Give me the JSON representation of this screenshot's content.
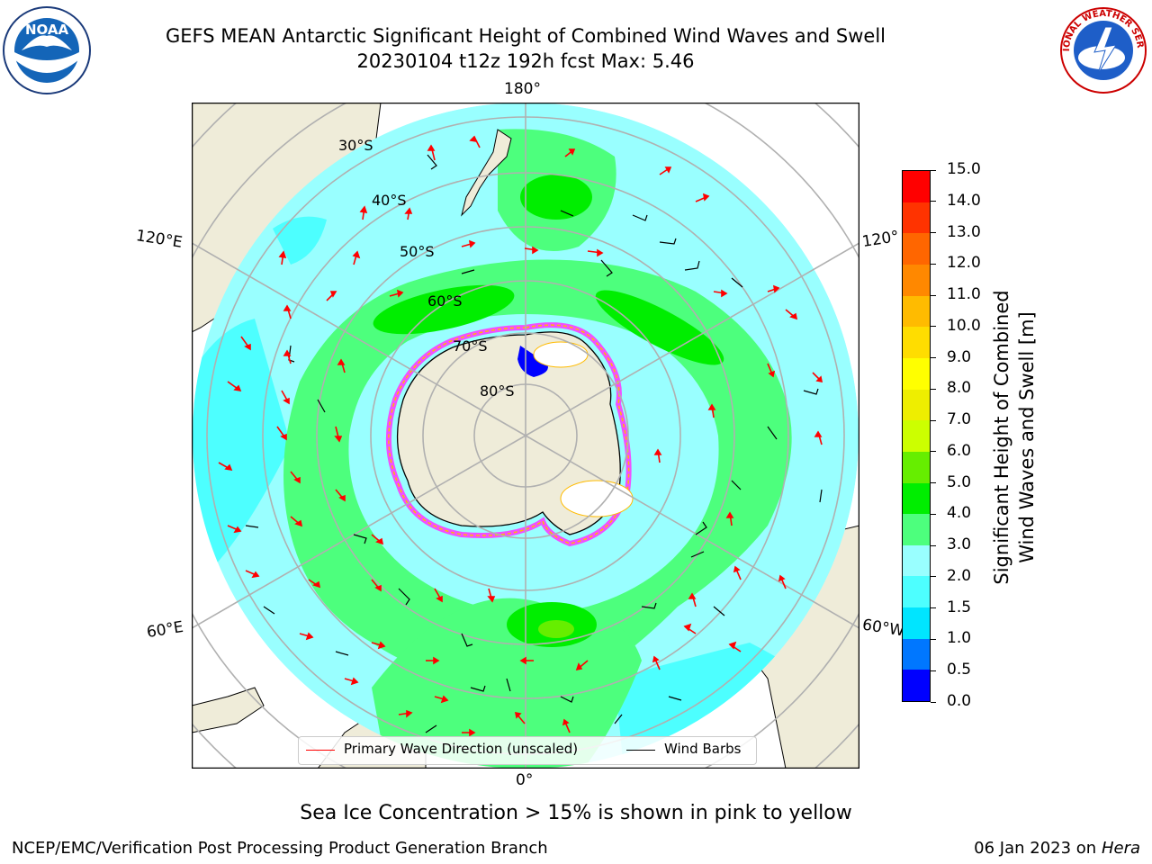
{
  "title": {
    "line1": "GEFS MEAN Antarctic Significant Height of Combined Wind Waves and Swell",
    "line2": "20230104 t12z 192h fcst   Max: 5.46"
  },
  "logos": {
    "left": {
      "text": "NOAA",
      "icon": "noaa-logo"
    },
    "right": {
      "text": "NATIONAL WEATHER SERVICE",
      "icon": "nws-logo"
    }
  },
  "map": {
    "projection": "south-polar-stereographic",
    "longitude_labels": {
      "top": "180°",
      "upper_left": "120°E",
      "upper_right": "120°",
      "lower_left": "60°E",
      "lower_right": "60°W",
      "bottom": "0°"
    },
    "latitude_labels": [
      "30°S",
      "40°S",
      "50°S",
      "60°S",
      "70°S",
      "80°S"
    ],
    "land_color": "#efecd9",
    "ocean_base_color": "#99ffff",
    "ice_color": "#ff33ff"
  },
  "legend": {
    "primary": "Primary Wave Direction (unscaled)",
    "primary_color": "#ff0000",
    "barbs": "Wind Barbs",
    "barbs_color": "#000000"
  },
  "colorbar": {
    "label_line1": "Significant Height of Combined",
    "label_line2": "Wind Waves and Swell [m]",
    "ticks": [
      "0.0",
      "0.5",
      "1.0",
      "1.5",
      "2.0",
      "3.0",
      "4.0",
      "5.0",
      "6.0",
      "7.0",
      "8.0",
      "9.0",
      "10.0",
      "11.0",
      "12.0",
      "13.0",
      "14.0",
      "15.0"
    ],
    "colors": [
      "#0000ff",
      "#0077ff",
      "#00e5ff",
      "#4dffff",
      "#99ffff",
      "#4dff7d",
      "#00ee00",
      "#66ee00",
      "#ccff00",
      "#eeee00",
      "#ffff00",
      "#ffdd00",
      "#ffbb00",
      "#ff8800",
      "#ff6600",
      "#ff3300",
      "#ff0000"
    ]
  },
  "notes": {
    "ice": "Sea Ice Concentration > 15% is shown in pink to yellow"
  },
  "footer": {
    "left": "NCEP/EMC/Verification Post Processing Product Generation Branch",
    "right_prefix": "06 Jan 2023 on ",
    "right_machine": "Hera"
  }
}
